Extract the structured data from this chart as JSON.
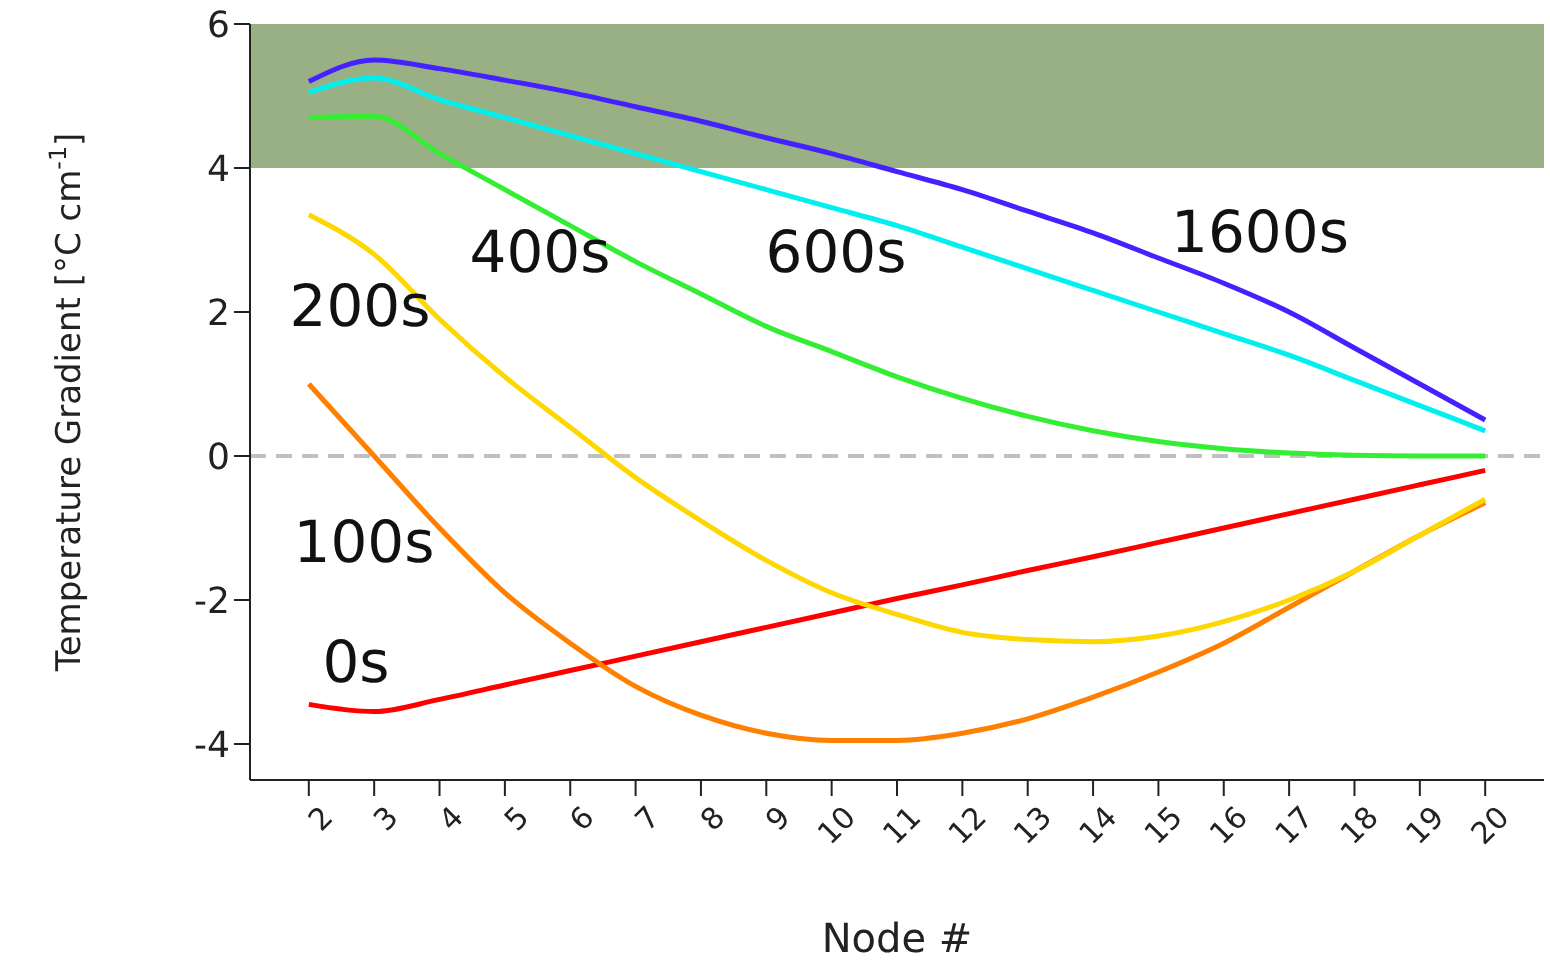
{
  "chart_data": {
    "type": "line",
    "xlabel": "Node #",
    "ylabel": "Temperature Gradient [°C cm$^{-1}$]",
    "x": [
      2,
      3,
      4,
      5,
      6,
      7,
      8,
      9,
      10,
      11,
      12,
      13,
      14,
      15,
      16,
      17,
      18,
      19,
      20
    ],
    "xlim": [
      1.1,
      20.9
    ],
    "xticks": [
      2,
      3,
      4,
      5,
      6,
      7,
      8,
      9,
      10,
      11,
      12,
      13,
      14,
      15,
      16,
      17,
      18,
      19,
      20
    ],
    "ylim": [
      -4.5,
      6
    ],
    "yticks": [
      -4,
      -2,
      0,
      2,
      4,
      6
    ],
    "marker": "none",
    "line_style": "solid",
    "series": [
      {
        "name": "0s",
        "color": "#ff0000",
        "values": [
          -3.45,
          -3.55,
          -3.38,
          -3.18,
          -2.98,
          -2.78,
          -2.58,
          -2.38,
          -2.18,
          -1.98,
          -1.79,
          -1.59,
          -1.4,
          -1.2,
          -1.0,
          -0.8,
          -0.6,
          -0.4,
          -0.2
        ]
      },
      {
        "name": "100s",
        "color": "#ff8000",
        "values": [
          1.0,
          0.0,
          -1.0,
          -1.9,
          -2.6,
          -3.2,
          -3.6,
          -3.85,
          -3.95,
          -3.95,
          -3.85,
          -3.65,
          -3.35,
          -3.0,
          -2.6,
          -2.1,
          -1.6,
          -1.1,
          -0.65
        ]
      },
      {
        "name": "200s",
        "color": "#ffd700",
        "values": [
          3.35,
          2.8,
          1.9,
          1.1,
          0.4,
          -0.3,
          -0.9,
          -1.45,
          -1.9,
          -2.2,
          -2.45,
          -2.55,
          -2.58,
          -2.5,
          -2.3,
          -2.0,
          -1.6,
          -1.1,
          -0.6
        ]
      },
      {
        "name": "400s",
        "color": "#33ee33",
        "values": [
          4.7,
          4.72,
          4.2,
          3.7,
          3.2,
          2.7,
          2.25,
          1.8,
          1.45,
          1.1,
          0.8,
          0.55,
          0.35,
          0.2,
          0.1,
          0.04,
          0.01,
          0,
          0
        ]
      },
      {
        "name": "600s",
        "color": "#00f0f0",
        "values": [
          5.05,
          5.25,
          4.95,
          4.7,
          4.45,
          4.2,
          3.95,
          3.7,
          3.45,
          3.2,
          2.9,
          2.6,
          2.3,
          2.0,
          1.7,
          1.4,
          1.05,
          0.7,
          0.35
        ]
      },
      {
        "name": "1600s",
        "color": "#4422ff",
        "values": [
          5.2,
          5.5,
          5.38,
          5.22,
          5.05,
          4.85,
          4.65,
          4.42,
          4.2,
          3.95,
          3.7,
          3.4,
          3.1,
          2.75,
          2.4,
          2.0,
          1.5,
          1.0,
          0.5
        ]
      }
    ],
    "bands": [
      {
        "axis": "y",
        "from": 4,
        "to": 6,
        "color": "#98b084"
      }
    ],
    "ref_lines": [
      {
        "axis": "y",
        "value": 0,
        "color": "#c0c0c0",
        "line_style": "dashed"
      }
    ]
  }
}
